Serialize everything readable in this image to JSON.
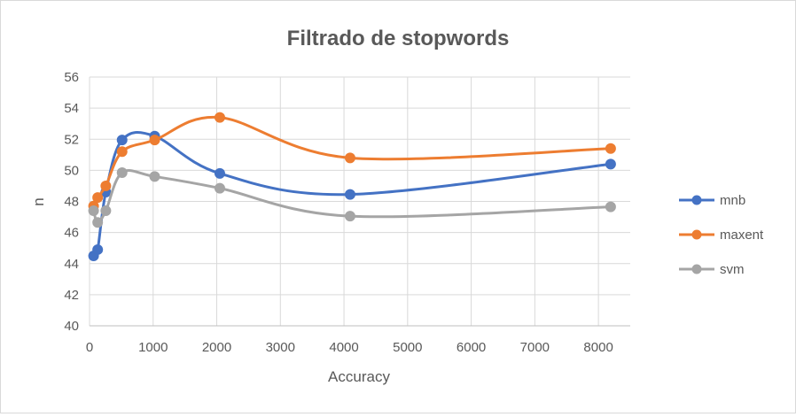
{
  "chart_data": {
    "type": "line",
    "title": "Filtrado de stopwords",
    "xlabel": "Accuracy",
    "ylabel": "n",
    "xlim": [
      0,
      8500
    ],
    "ylim": [
      40,
      56
    ],
    "x_ticks": [
      "0",
      "1000",
      "2000",
      "3000",
      "4000",
      "5000",
      "6000",
      "7000",
      "8000"
    ],
    "y_ticks": [
      "40",
      "42",
      "44",
      "46",
      "48",
      "50",
      "52",
      "54",
      "56"
    ],
    "grid": true,
    "legend_position": "right",
    "smooth": true,
    "series": [
      {
        "name": "mnb",
        "color": "#4472c4",
        "points": [
          [
            64,
            44.5
          ],
          [
            128,
            44.9
          ],
          [
            256,
            48.6
          ],
          [
            512,
            51.95
          ],
          [
            1024,
            52.2
          ],
          [
            2048,
            49.8
          ],
          [
            4096,
            48.45
          ],
          [
            8192,
            50.4
          ]
        ]
      },
      {
        "name": "maxent",
        "color": "#ed7d31",
        "points": [
          [
            64,
            47.7
          ],
          [
            128,
            48.25
          ],
          [
            256,
            49.0
          ],
          [
            512,
            51.2
          ],
          [
            1024,
            51.95
          ],
          [
            2048,
            53.4
          ],
          [
            4096,
            50.8
          ],
          [
            8192,
            51.4
          ]
        ]
      },
      {
        "name": "svm",
        "color": "#a5a5a5",
        "points": [
          [
            64,
            47.4
          ],
          [
            128,
            46.65
          ],
          [
            256,
            47.4
          ],
          [
            512,
            49.85
          ],
          [
            1024,
            49.6
          ],
          [
            2048,
            48.85
          ],
          [
            4096,
            47.05
          ],
          [
            8192,
            47.65
          ]
        ]
      }
    ]
  }
}
